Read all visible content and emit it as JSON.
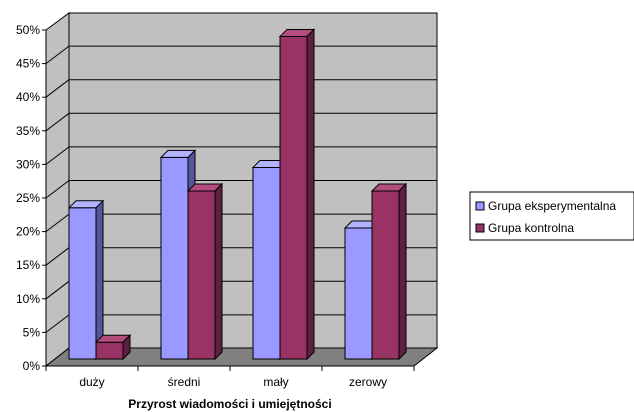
{
  "chart_data": {
    "type": "bar",
    "title": "",
    "xlabel": "Przyrost wiadomości i umiejętności",
    "ylabel": "",
    "ylim": [
      0,
      50
    ],
    "y_ticks": [
      "0%",
      "5%",
      "10%",
      "15%",
      "20%",
      "25%",
      "30%",
      "35%",
      "40%",
      "45%",
      "50%"
    ],
    "categories": [
      "duży",
      "średni",
      "mały",
      "zerowy"
    ],
    "series": [
      {
        "name": "Grupa eksperymentalna",
        "values": [
          22.5,
          30,
          28.5,
          19.5
        ]
      },
      {
        "name": "Grupa kontrolna",
        "values": [
          2.5,
          25,
          48,
          25
        ]
      }
    ],
    "grid": true,
    "legend_position": "right",
    "colors": {
      "wall": "#c0c0c0",
      "floor": "#808080",
      "series": [
        "#9999ff",
        "#993366"
      ],
      "series_top": [
        "#b2b2ff",
        "#b34d7f"
      ],
      "series_side": [
        "#55559a",
        "#5f1f3f"
      ]
    }
  }
}
